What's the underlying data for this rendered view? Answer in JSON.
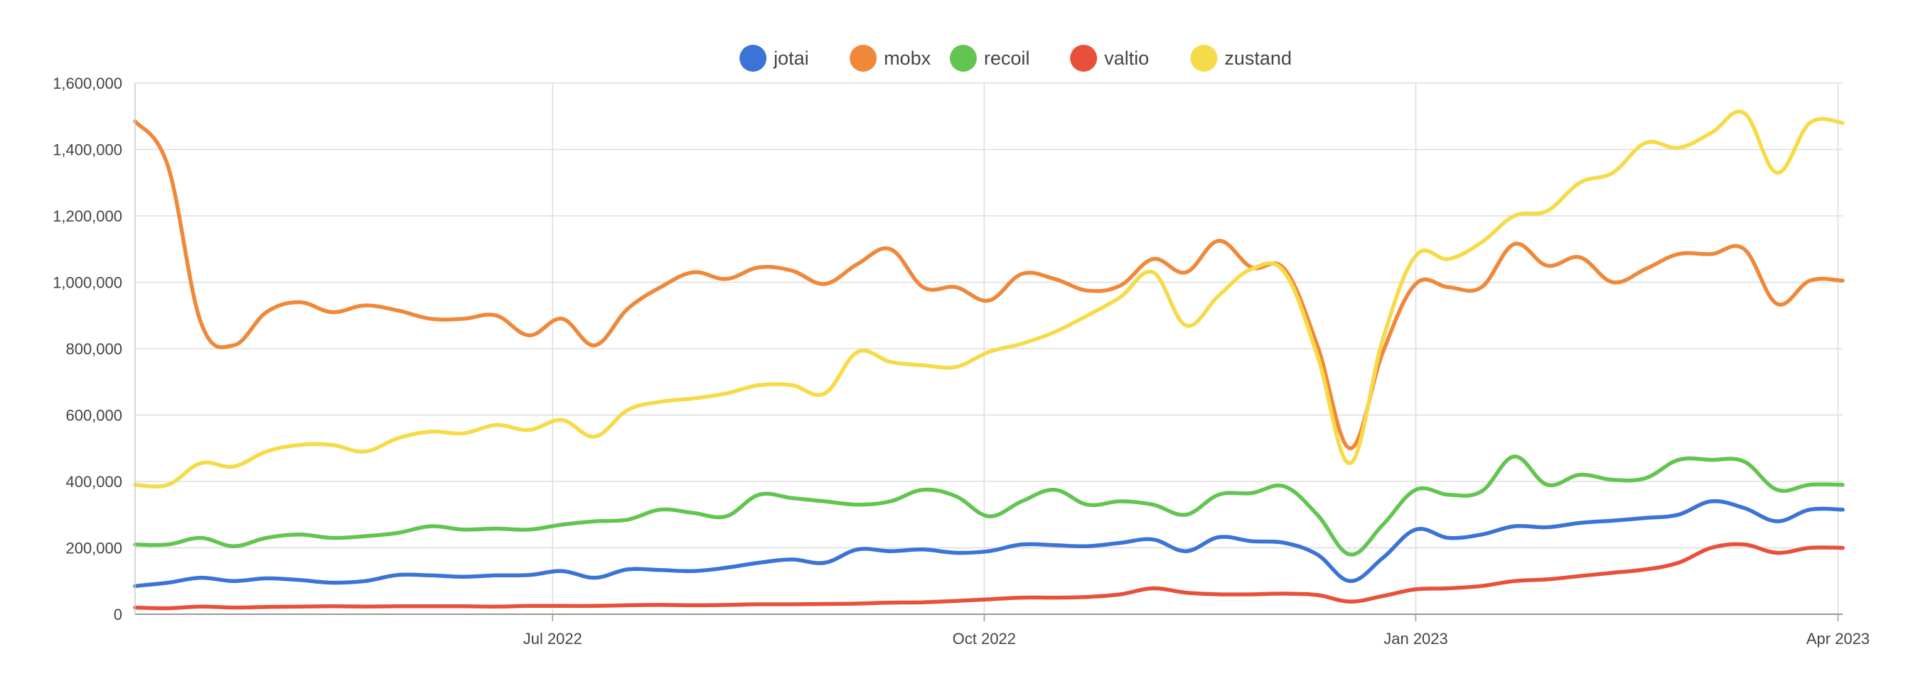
{
  "chart_data": {
    "type": "line",
    "title": "",
    "xlabel": "",
    "ylabel": "",
    "x_tick_labels": [
      "Jul 2022",
      "Oct 2022",
      "Jan 2023",
      "Apr 2023"
    ],
    "x_tick_dates": [
      "2022-07-01",
      "2022-10-01",
      "2023-01-01",
      "2023-04-01"
    ],
    "y_tick_labels": [
      "0",
      "200,000",
      "400,000",
      "600,000",
      "800,000",
      "1,000,000",
      "1,200,000",
      "1,400,000",
      "1,600,000"
    ],
    "ylim": [
      0,
      1600000
    ],
    "xlim": [
      "2022-04-03",
      "2023-04-02"
    ],
    "grid": true,
    "legend_position": "top-center",
    "x": [
      "2022-04-03",
      "2022-04-10",
      "2022-04-17",
      "2022-04-24",
      "2022-05-01",
      "2022-05-08",
      "2022-05-15",
      "2022-05-22",
      "2022-05-29",
      "2022-06-05",
      "2022-06-12",
      "2022-06-19",
      "2022-06-26",
      "2022-07-03",
      "2022-07-10",
      "2022-07-17",
      "2022-07-24",
      "2022-07-31",
      "2022-08-07",
      "2022-08-14",
      "2022-08-21",
      "2022-08-28",
      "2022-09-04",
      "2022-09-11",
      "2022-09-18",
      "2022-09-25",
      "2022-10-02",
      "2022-10-09",
      "2022-10-16",
      "2022-10-23",
      "2022-10-30",
      "2022-11-06",
      "2022-11-13",
      "2022-11-20",
      "2022-11-27",
      "2022-12-04",
      "2022-12-11",
      "2022-12-18",
      "2022-12-25",
      "2023-01-01",
      "2023-01-08",
      "2023-01-15",
      "2023-01-22",
      "2023-01-29",
      "2023-02-05",
      "2023-02-12",
      "2023-02-19",
      "2023-02-26",
      "2023-03-05",
      "2023-03-12",
      "2023-03-19",
      "2023-03-26",
      "2023-04-02"
    ],
    "series": [
      {
        "name": "jotai",
        "color": "#3b73d6",
        "values": [
          85000,
          95000,
          110000,
          100000,
          108000,
          103000,
          95000,
          100000,
          118000,
          117000,
          113000,
          117000,
          118000,
          130000,
          110000,
          135000,
          133000,
          130000,
          140000,
          155000,
          165000,
          155000,
          195000,
          190000,
          195000,
          185000,
          190000,
          210000,
          208000,
          205000,
          215000,
          225000,
          190000,
          232000,
          220000,
          215000,
          180000,
          100000,
          170000,
          255000,
          230000,
          240000,
          265000,
          262000,
          275000,
          282000,
          290000,
          300000,
          340000,
          320000,
          280000,
          315000,
          315000
        ]
      },
      {
        "name": "mobx",
        "color": "#f0883a",
        "values": [
          1485000,
          1350000,
          880000,
          810000,
          910000,
          940000,
          910000,
          930000,
          915000,
          890000,
          890000,
          900000,
          840000,
          890000,
          810000,
          920000,
          985000,
          1030000,
          1010000,
          1045000,
          1035000,
          995000,
          1055000,
          1100000,
          985000,
          985000,
          945000,
          1025000,
          1010000,
          975000,
          990000,
          1070000,
          1030000,
          1125000,
          1045000,
          1040000,
          810000,
          500000,
          790000,
          995000,
          985000,
          985000,
          1115000,
          1050000,
          1075000,
          1000000,
          1040000,
          1085000,
          1085000,
          1100000,
          935000,
          1005000,
          1005000
        ]
      },
      {
        "name": "recoil",
        "color": "#62c550",
        "values": [
          210000,
          210000,
          230000,
          205000,
          230000,
          240000,
          230000,
          235000,
          245000,
          265000,
          255000,
          258000,
          255000,
          270000,
          280000,
          285000,
          315000,
          305000,
          295000,
          360000,
          350000,
          340000,
          330000,
          340000,
          375000,
          355000,
          295000,
          340000,
          375000,
          330000,
          340000,
          330000,
          300000,
          360000,
          365000,
          385000,
          300000,
          180000,
          270000,
          375000,
          360000,
          370000,
          475000,
          390000,
          420000,
          405000,
          410000,
          465000,
          465000,
          460000,
          375000,
          390000,
          390000
        ]
      },
      {
        "name": "valtio",
        "color": "#e8503c",
        "values": [
          20000,
          18000,
          23000,
          20000,
          22000,
          23000,
          24000,
          23000,
          24000,
          24000,
          24000,
          23000,
          25000,
          25000,
          25000,
          27000,
          28000,
          27000,
          28000,
          30000,
          30000,
          31000,
          32000,
          35000,
          36000,
          40000,
          45000,
          50000,
          50000,
          52000,
          60000,
          78000,
          65000,
          60000,
          60000,
          62000,
          58000,
          38000,
          55000,
          75000,
          78000,
          85000,
          100000,
          105000,
          115000,
          125000,
          135000,
          155000,
          200000,
          210000,
          185000,
          200000,
          200000
        ]
      },
      {
        "name": "zustand",
        "color": "#f6db49",
        "values": [
          390000,
          390000,
          455000,
          445000,
          490000,
          510000,
          510000,
          490000,
          530000,
          550000,
          545000,
          570000,
          555000,
          585000,
          535000,
          615000,
          640000,
          650000,
          665000,
          690000,
          690000,
          665000,
          790000,
          760000,
          750000,
          745000,
          790000,
          815000,
          850000,
          900000,
          955000,
          1030000,
          870000,
          960000,
          1040000,
          1030000,
          780000,
          455000,
          830000,
          1080000,
          1070000,
          1120000,
          1200000,
          1215000,
          1300000,
          1330000,
          1420000,
          1405000,
          1450000,
          1510000,
          1330000,
          1480000,
          1480000
        ]
      }
    ]
  }
}
